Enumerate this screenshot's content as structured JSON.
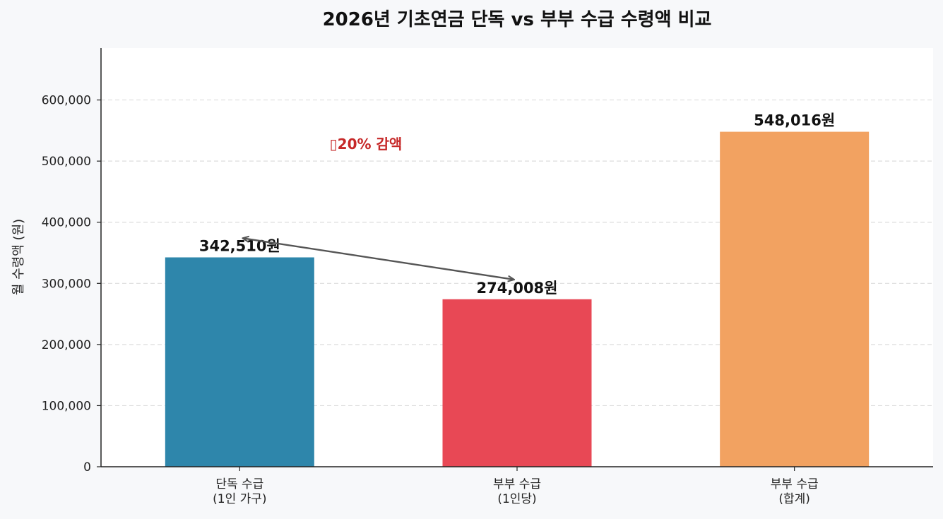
{
  "chart_data": {
    "type": "bar",
    "title": "2026년 기초연금 단독 vs 부부 수급 수령액 비교",
    "ylabel": "월 수령액 (원)",
    "xlabel": "",
    "categories": [
      [
        "단독 수급",
        "(1인 가구)"
      ],
      [
        "부부 수급",
        "(1인당)"
      ],
      [
        "부부 수급",
        "(합계)"
      ]
    ],
    "values": [
      342510,
      274008,
      548016
    ],
    "value_labels": [
      "342,510원",
      "274,008원",
      "548,016원"
    ],
    "bar_colors": [
      "#2e86ab",
      "#e84855",
      "#f2a261"
    ],
    "ylim": [
      0,
      685000
    ],
    "yticks": [
      0,
      100000,
      200000,
      300000,
      400000,
      500000,
      600000
    ],
    "ytick_labels": [
      "0",
      "100,000",
      "200,000",
      "300,000",
      "400,000",
      "500,000",
      "600,000"
    ],
    "grid": true,
    "annotation": {
      "text": "▯20% 감액",
      "color": "#c62828",
      "from_category": 1,
      "to_category": 0
    },
    "arrow_color": "#555555"
  }
}
